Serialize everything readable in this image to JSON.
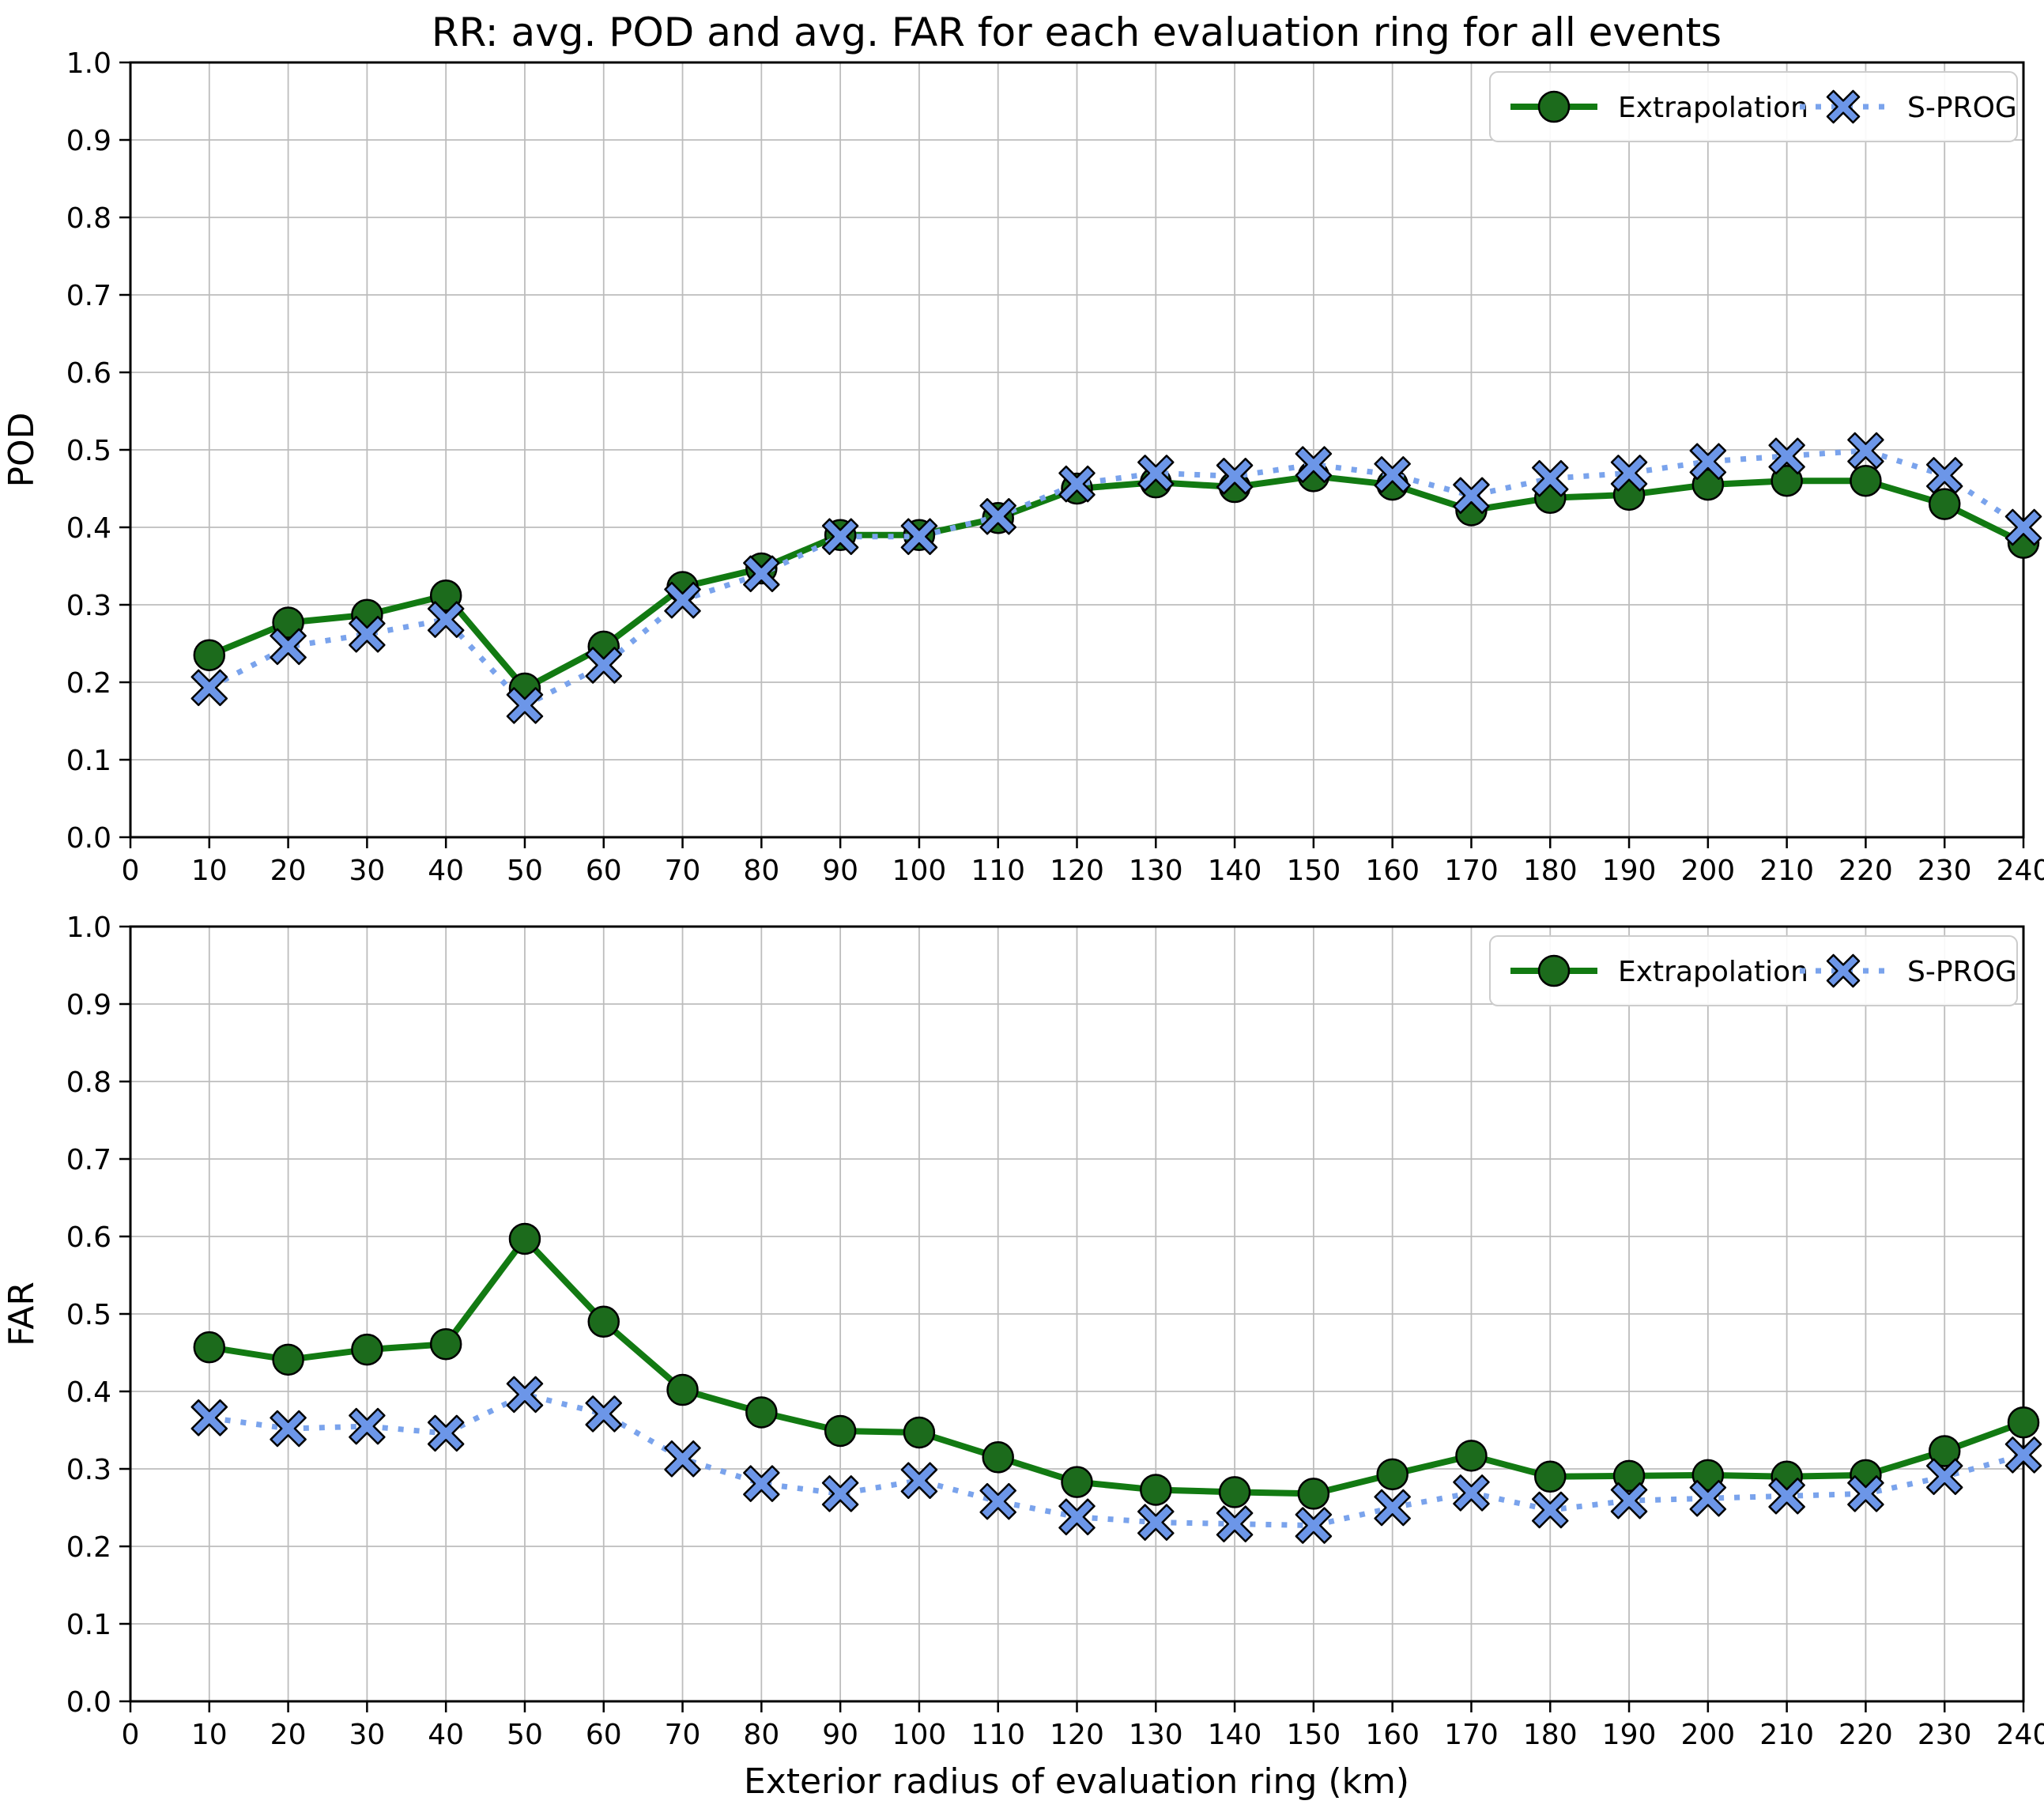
{
  "title": "RR: avg. POD and avg. FAR for each evaluation ring for all events",
  "xlabel": "Exterior radius of evaluation ring (km)",
  "legend_labels": [
    "Extrapolation",
    "S-PROG"
  ],
  "colors": {
    "extrapolation_line": "#127a12",
    "extrapolation_marker": "#1c6b1c",
    "sprog_line": "#7aa3ec",
    "sprog_marker": "#6c96e8",
    "marker_edge": "#000000",
    "grid": "#bdbdbd",
    "spine": "#000000",
    "legend_border": "#cccccc",
    "background": "#ffffff"
  },
  "chart_data": [
    {
      "type": "line",
      "title": "",
      "ylabel": "POD",
      "xlabel": "",
      "xlim": [
        0,
        240
      ],
      "ylim": [
        0.0,
        1.0
      ],
      "xticks": [
        0,
        10,
        20,
        30,
        40,
        50,
        60,
        70,
        80,
        90,
        100,
        110,
        120,
        130,
        140,
        150,
        160,
        170,
        180,
        190,
        200,
        210,
        220,
        230,
        240
      ],
      "yticks": [
        0.0,
        0.1,
        0.2,
        0.3,
        0.4,
        0.5,
        0.6,
        0.7,
        0.8,
        0.9,
        1.0
      ],
      "grid": true,
      "legend_position": "upper right",
      "x": [
        10,
        20,
        30,
        40,
        50,
        60,
        70,
        80,
        90,
        100,
        110,
        120,
        130,
        140,
        150,
        160,
        170,
        180,
        190,
        200,
        210,
        220,
        230,
        240
      ],
      "series": [
        {
          "name": "Extrapolation",
          "marker": "circle",
          "line": "solid",
          "values": [
            0.235,
            0.277,
            0.287,
            0.312,
            0.192,
            0.246,
            0.323,
            0.347,
            0.39,
            0.39,
            0.412,
            0.45,
            0.458,
            0.452,
            0.466,
            0.455,
            0.422,
            0.438,
            0.442,
            0.455,
            0.46,
            0.46,
            0.43,
            0.38
          ]
        },
        {
          "name": "S-PROG",
          "marker": "X",
          "line": "dotted",
          "values": [
            0.193,
            0.246,
            0.262,
            0.281,
            0.17,
            0.222,
            0.306,
            0.34,
            0.388,
            0.388,
            0.414,
            0.456,
            0.47,
            0.466,
            0.481,
            0.468,
            0.441,
            0.463,
            0.47,
            0.485,
            0.492,
            0.499,
            0.467,
            0.4
          ]
        }
      ]
    },
    {
      "type": "line",
      "title": "",
      "ylabel": "FAR",
      "xlabel": "Exterior radius of evaluation ring (km)",
      "xlim": [
        0,
        240
      ],
      "ylim": [
        0.0,
        1.0
      ],
      "xticks": [
        0,
        10,
        20,
        30,
        40,
        50,
        60,
        70,
        80,
        90,
        100,
        110,
        120,
        130,
        140,
        150,
        160,
        170,
        180,
        190,
        200,
        210,
        220,
        230,
        240
      ],
      "yticks": [
        0.0,
        0.1,
        0.2,
        0.3,
        0.4,
        0.5,
        0.6,
        0.7,
        0.8,
        0.9,
        1.0
      ],
      "grid": true,
      "legend_position": "upper right",
      "x": [
        10,
        20,
        30,
        40,
        50,
        60,
        70,
        80,
        90,
        100,
        110,
        120,
        130,
        140,
        150,
        160,
        170,
        180,
        190,
        200,
        210,
        220,
        230,
        240
      ],
      "series": [
        {
          "name": "Extrapolation",
          "marker": "circle",
          "line": "solid",
          "values": [
            0.457,
            0.441,
            0.454,
            0.461,
            0.597,
            0.49,
            0.402,
            0.373,
            0.349,
            0.347,
            0.315,
            0.283,
            0.273,
            0.27,
            0.268,
            0.293,
            0.317,
            0.29,
            0.291,
            0.292,
            0.29,
            0.292,
            0.323,
            0.36
          ]
        },
        {
          "name": "S-PROG",
          "marker": "X",
          "line": "dotted",
          "values": [
            0.366,
            0.352,
            0.355,
            0.346,
            0.396,
            0.371,
            0.313,
            0.281,
            0.268,
            0.285,
            0.258,
            0.238,
            0.231,
            0.229,
            0.227,
            0.25,
            0.269,
            0.247,
            0.259,
            0.262,
            0.265,
            0.268,
            0.29,
            0.318
          ]
        }
      ]
    }
  ]
}
